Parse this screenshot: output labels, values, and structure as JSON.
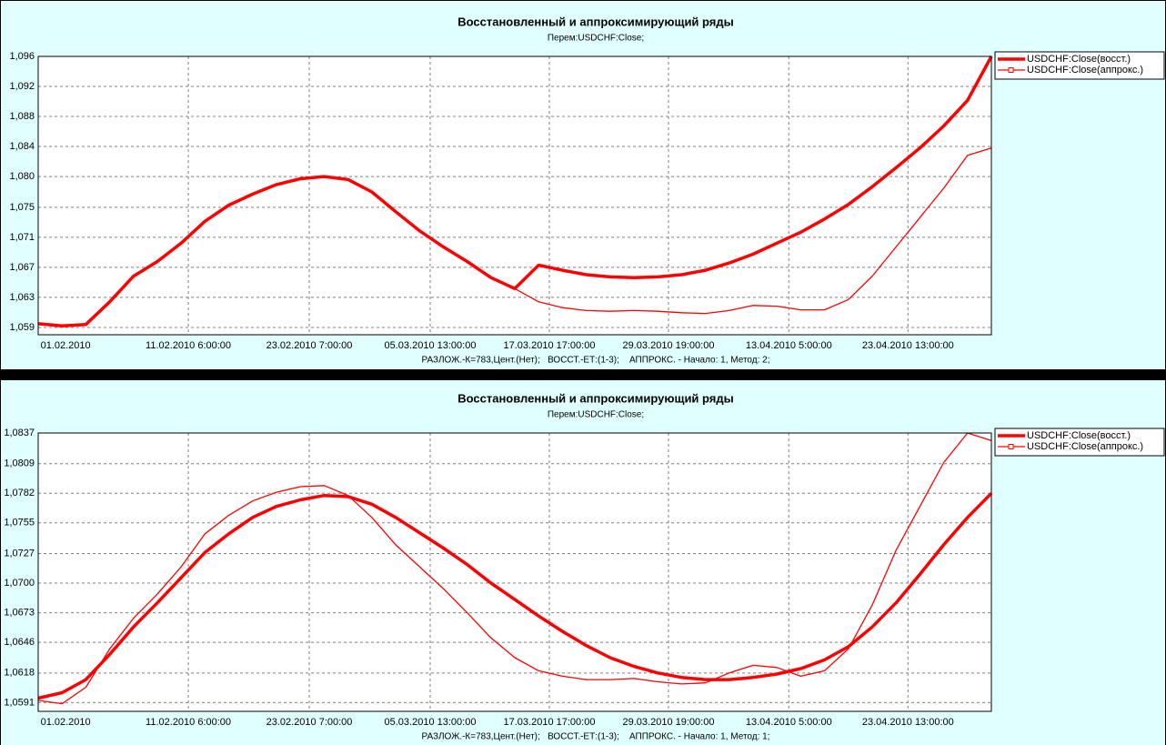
{
  "chart_data": [
    {
      "type": "line",
      "title": "Восстановленный и аппроксимирующий ряды",
      "subtitle": "Перем:USDCHF:Close;",
      "footer": "РАЗЛОЖ.-К=783,Цент.(Нет);   ВОССТ.-ЕТ:(1-3);    АППРОКС. - Начало: 1, Метод: 2;",
      "x": [
        0,
        2,
        4,
        6,
        8,
        10,
        12,
        14,
        16,
        18,
        20,
        22,
        24,
        26,
        28,
        30,
        32,
        34,
        36,
        38,
        40,
        42,
        44,
        46,
        48,
        50,
        52,
        54,
        56,
        58,
        60,
        62,
        64,
        66,
        68,
        70,
        72,
        74,
        76,
        78,
        80
      ],
      "xlim": [
        0,
        80
      ],
      "xticks": [
        {
          "value": 2.3,
          "label": "01.02.2010"
        },
        {
          "value": 12.6,
          "label": "11.02.2010 6:00:00"
        },
        {
          "value": 22.75,
          "label": "23.02.2010 7:00:00"
        },
        {
          "value": 32.9,
          "label": "05.03.2010 13:00:00"
        },
        {
          "value": 42.9,
          "label": "17.03.2010 17:00:00"
        },
        {
          "value": 52.9,
          "label": "29.03.2010 19:00:00"
        },
        {
          "value": 63.0,
          "label": "13.04.2010 5:00:00"
        },
        {
          "value": 73.0,
          "label": "23.04.2010 13:00:00"
        }
      ],
      "ylim": [
        1.058,
        1.096
      ],
      "yticks": [
        {
          "value": 1.059,
          "label": "1,059"
        },
        {
          "value": 1.0631,
          "label": "1,063"
        },
        {
          "value": 1.0672,
          "label": "1,067"
        },
        {
          "value": 1.0713,
          "label": "1,071"
        },
        {
          "value": 1.0754,
          "label": "1,075"
        },
        {
          "value": 1.0796,
          "label": "1,080"
        },
        {
          "value": 1.0837,
          "label": "1,084"
        },
        {
          "value": 1.0878,
          "label": "1,088"
        },
        {
          "value": 1.0919,
          "label": "1,092"
        },
        {
          "value": 1.096,
          "label": "1,096"
        }
      ],
      "grid": true,
      "legend": "right",
      "series": [
        {
          "name": "USDCHF:Close(восст.)",
          "color": "#ff0000",
          "values": [
            1.0595,
            1.0592,
            1.0594,
            1.0625,
            1.066,
            1.068,
            1.0705,
            1.0735,
            1.0757,
            1.0772,
            1.0785,
            1.0793,
            1.0796,
            1.0792,
            1.0775,
            1.0748,
            1.0722,
            1.07,
            1.068,
            1.0658,
            1.0643,
            1.0675,
            1.0668,
            1.0662,
            1.0659,
            1.0658,
            1.0659,
            1.0662,
            1.0668,
            1.0678,
            1.069,
            1.0705,
            1.072,
            1.0738,
            1.0758,
            1.0782,
            1.0808,
            1.0835,
            1.0865,
            1.09,
            1.096
          ]
        },
        {
          "name": "USDCHF:Close(аппрокс.)",
          "color": "#ff0000",
          "values": [
            1.0595,
            1.0592,
            1.0594,
            1.0625,
            1.066,
            1.068,
            1.0705,
            1.0735,
            1.0757,
            1.0772,
            1.0785,
            1.0793,
            1.0796,
            1.0792,
            1.0775,
            1.0748,
            1.0722,
            1.07,
            1.068,
            1.0658,
            1.0643,
            1.0625,
            1.0617,
            1.0613,
            1.0612,
            1.0613,
            1.0612,
            1.061,
            1.0609,
            1.0613,
            1.062,
            1.0619,
            1.0614,
            1.0614,
            1.0628,
            1.066,
            1.07,
            1.074,
            1.078,
            1.0825,
            1.0835
          ]
        }
      ]
    },
    {
      "type": "line",
      "title": "Восстановленный и аппроксимирующий ряды",
      "subtitle": "Перем:USDCHF:Close;",
      "footer": "РАЗЛОЖ.-К=783,Цент.(Нет);   ВОССТ.-ЕТ:(1-3);    АППРОКС. - Начало: 1, Метод: 1;",
      "x": [
        0,
        2,
        4,
        6,
        8,
        10,
        12,
        14,
        16,
        18,
        20,
        22,
        24,
        26,
        28,
        30,
        32,
        34,
        36,
        38,
        40,
        42,
        44,
        46,
        48,
        50,
        52,
        54,
        56,
        58,
        60,
        62,
        64,
        66,
        68,
        70,
        72,
        74,
        76,
        78,
        80
      ],
      "xlim": [
        0,
        80
      ],
      "xticks": [
        {
          "value": 2.3,
          "label": "01.02.2010"
        },
        {
          "value": 12.6,
          "label": "11.02.2010 6:00:00"
        },
        {
          "value": 22.75,
          "label": "23.02.2010 7:00:00"
        },
        {
          "value": 32.9,
          "label": "05.03.2010 13:00:00"
        },
        {
          "value": 42.9,
          "label": "17.03.2010 17:00:00"
        },
        {
          "value": 52.9,
          "label": "29.03.2010 19:00:00"
        },
        {
          "value": 63.0,
          "label": "13.04.2010 5:00:00"
        },
        {
          "value": 73.0,
          "label": "23.04.2010 13:00:00"
        }
      ],
      "ylim": [
        1.0583,
        1.0837
      ],
      "yticks": [
        {
          "value": 1.0591,
          "label": "1,0591"
        },
        {
          "value": 1.0618,
          "label": "1,0618"
        },
        {
          "value": 1.0646,
          "label": "1,0646"
        },
        {
          "value": 1.0673,
          "label": "1,0673"
        },
        {
          "value": 1.07,
          "label": "1,0700"
        },
        {
          "value": 1.0727,
          "label": "1,0727"
        },
        {
          "value": 1.0755,
          "label": "1,0755"
        },
        {
          "value": 1.0782,
          "label": "1,0782"
        },
        {
          "value": 1.0809,
          "label": "1,0809"
        },
        {
          "value": 1.0837,
          "label": "1,0837"
        }
      ],
      "grid": true,
      "legend": "right",
      "series": [
        {
          "name": "USDCHF:Close(восст.)",
          "color": "#ff0000",
          "values": [
            1.0595,
            1.06,
            1.0612,
            1.0635,
            1.066,
            1.0682,
            1.0705,
            1.0728,
            1.0745,
            1.076,
            1.077,
            1.0776,
            1.078,
            1.0779,
            1.0772,
            1.076,
            1.0746,
            1.0732,
            1.0717,
            1.07,
            1.0685,
            1.067,
            1.0656,
            1.0643,
            1.0632,
            1.0624,
            1.0618,
            1.0614,
            1.0612,
            1.0612,
            1.0614,
            1.0617,
            1.0622,
            1.063,
            1.0642,
            1.066,
            1.0682,
            1.0708,
            1.0735,
            1.076,
            1.0782
          ]
        },
        {
          "name": "USDCHF:Close(аппрокс.)",
          "color": "#ff0000",
          "values": [
            1.0593,
            1.059,
            1.0605,
            1.064,
            1.0668,
            1.069,
            1.0715,
            1.0745,
            1.0762,
            1.0775,
            1.0783,
            1.0788,
            1.0789,
            1.078,
            1.076,
            1.0735,
            1.0715,
            1.0695,
            1.0673,
            1.065,
            1.0632,
            1.062,
            1.0615,
            1.0612,
            1.0612,
            1.0613,
            1.061,
            1.0608,
            1.0609,
            1.0618,
            1.0625,
            1.0623,
            1.0615,
            1.062,
            1.064,
            1.068,
            1.073,
            1.077,
            1.081,
            1.0837,
            1.083
          ]
        }
      ]
    }
  ]
}
